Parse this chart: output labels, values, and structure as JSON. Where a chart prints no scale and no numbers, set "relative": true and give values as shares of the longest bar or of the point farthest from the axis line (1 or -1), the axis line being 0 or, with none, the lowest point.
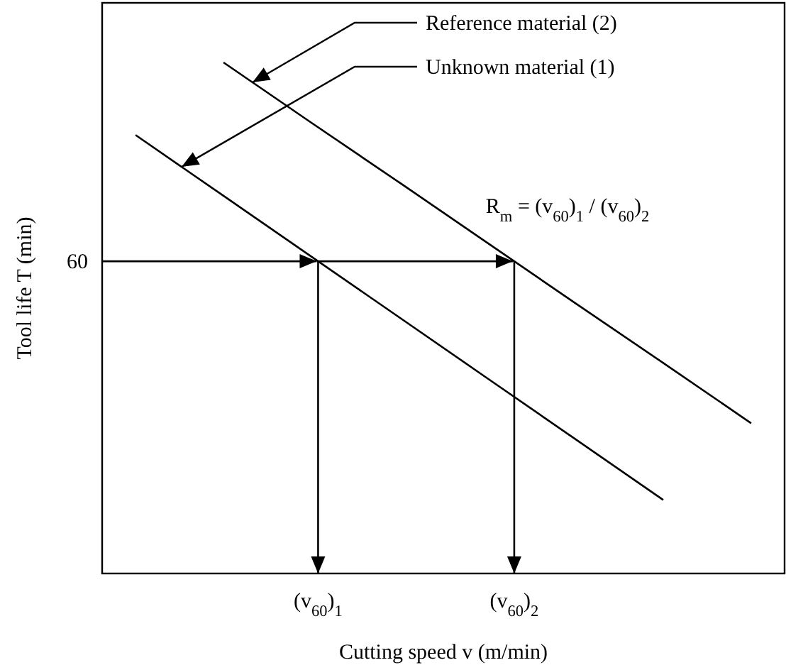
{
  "chart_data": {
    "type": "line",
    "relative": true,
    "xlabel": "Cutting speed v (m/min)",
    "ylabel": "Tool life T (min)",
    "categories": [
      null,
      null,
      null,
      null,
      null,
      null,
      null,
      null
    ],
    "series": [
      {
        "name": "Reference material (2)",
        "color": "#000000",
        "values": [
          null,
          1,
          0.882,
          0.765,
          0.647,
          0.529,
          0.412,
          0.294
        ]
      },
      {
        "name": "Unknown material (1)",
        "color": "#000000",
        "values": [
          0.858,
          0.739,
          0.62,
          0.501,
          0.382,
          0.263,
          0.144,
          null
        ]
      }
    ],
    "ref_lines": [
      {
        "axis": "y",
        "value": 0.611
      }
    ],
    "annotations": [
      "R$_{m}$ = (v$_{60}$)$_{1}$ / (v$_{60}$)$_{2}$",
      "(v$_{60}$)$_{1}$",
      "(v$_{60}$)$_{2}$",
      "60"
    ],
    "legend": false,
    "marker": "none",
    "line_style": "solid"
  }
}
